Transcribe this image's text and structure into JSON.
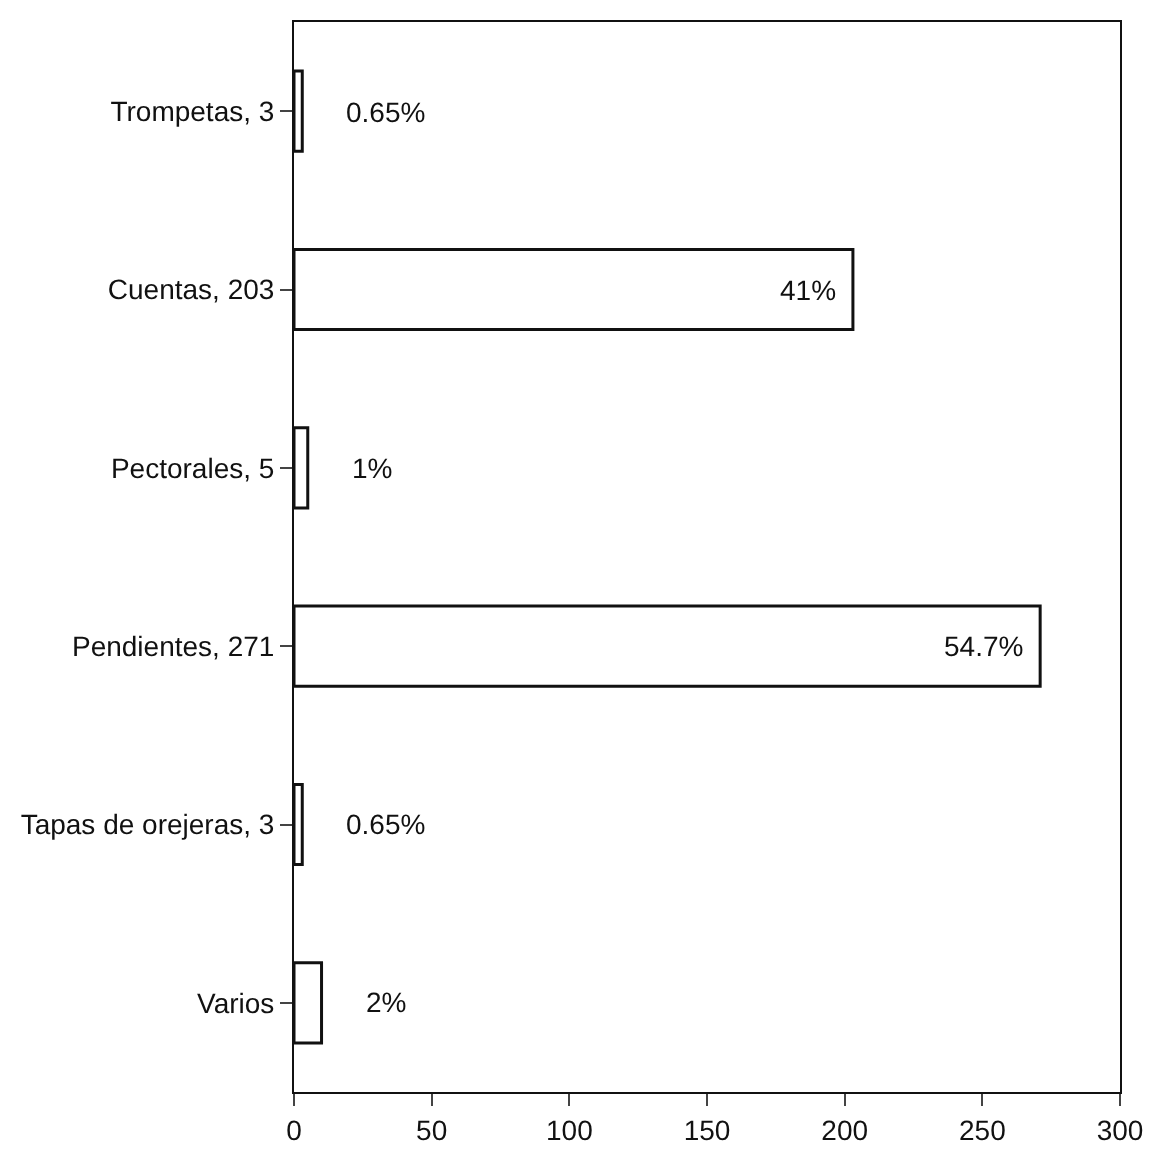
{
  "chart_data": {
    "type": "bar",
    "orientation": "horizontal",
    "categories": [
      "Trompetas, 3",
      "Cuentas, 203",
      "Pectorales, 5",
      "Pendientes, 271",
      "Tapas de orejeras, 3",
      "Varios"
    ],
    "values": [
      3,
      203,
      5,
      271,
      3,
      10
    ],
    "annotations": [
      {
        "text": "0.65%",
        "x": 3,
        "y": "Trompetas, 3"
      },
      {
        "text": "41%",
        "x": 203,
        "y": "Cuentas, 203"
      },
      {
        "text": "1%",
        "x": 5,
        "y": "Pectorales, 5"
      },
      {
        "text": "54.7%",
        "x": 271,
        "y": "Pendientes, 271"
      },
      {
        "text": "0.65%",
        "x": 3,
        "y": "Tapas de orejeras, 3"
      },
      {
        "text": "2%",
        "x": 10,
        "y": "Varios"
      }
    ],
    "color": "#ffffff",
    "xlim": [
      0,
      300
    ],
    "xticks": [
      0,
      50,
      100,
      150,
      200,
      250,
      300
    ],
    "grid": false,
    "legend": false
  }
}
